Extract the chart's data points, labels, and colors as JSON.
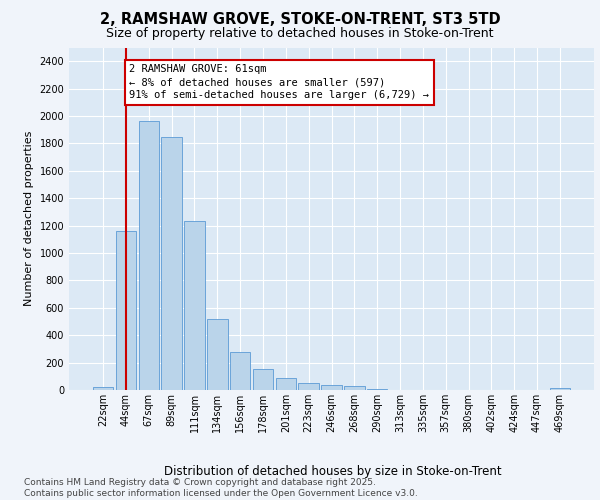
{
  "title1": "2, RAMSHAW GROVE, STOKE-ON-TRENT, ST3 5TD",
  "title2": "Size of property relative to detached houses in Stoke-on-Trent",
  "xlabel": "Distribution of detached houses by size in Stoke-on-Trent",
  "ylabel": "Number of detached properties",
  "categories": [
    "22sqm",
    "44sqm",
    "67sqm",
    "89sqm",
    "111sqm",
    "134sqm",
    "156sqm",
    "178sqm",
    "201sqm",
    "223sqm",
    "246sqm",
    "268sqm",
    "290sqm",
    "313sqm",
    "335sqm",
    "357sqm",
    "380sqm",
    "402sqm",
    "424sqm",
    "447sqm",
    "469sqm"
  ],
  "values": [
    25,
    1160,
    1960,
    1850,
    1230,
    520,
    275,
    155,
    85,
    48,
    38,
    30,
    5,
    3,
    2,
    1,
    1,
    0,
    0,
    0,
    14
  ],
  "bar_color": "#bad4ea",
  "bar_edge_color": "#5b9bd5",
  "bg_color": "#dce9f5",
  "fig_bg_color": "#f0f4fa",
  "grid_color": "#ffffff",
  "redline_x": 1,
  "annotation_text": "2 RAMSHAW GROVE: 61sqm\n← 8% of detached houses are smaller (597)\n91% of semi-detached houses are larger (6,729) →",
  "ann_edge_color": "#cc0000",
  "ylim": [
    0,
    2500
  ],
  "yticks": [
    0,
    200,
    400,
    600,
    800,
    1000,
    1200,
    1400,
    1600,
    1800,
    2000,
    2200,
    2400
  ],
  "title1_fontsize": 10.5,
  "title2_fontsize": 9,
  "xlabel_fontsize": 8.5,
  "ylabel_fontsize": 8,
  "tick_fontsize": 7,
  "annot_fontsize": 7.5,
  "footnote_fontsize": 6.5,
  "footnote": "Contains HM Land Registry data © Crown copyright and database right 2025.\nContains public sector information licensed under the Open Government Licence v3.0."
}
